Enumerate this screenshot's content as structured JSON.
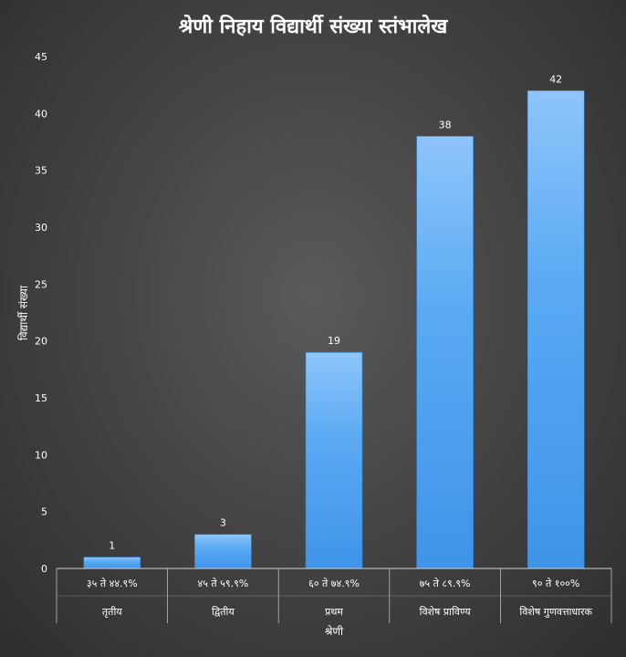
{
  "chart_data": {
    "type": "bar",
    "title": "श्रेणी निहाय विद्यार्थी संख्या स्तंभालेख",
    "xlabel": "श्रेणी",
    "ylabel": "विद्यार्थी संख्या",
    "ylim": [
      0,
      45
    ],
    "yticks": [
      "0",
      "5",
      "10",
      "15",
      "20",
      "25",
      "30",
      "35",
      "40",
      "45"
    ],
    "categories": [
      {
        "range": "३५ ते ४४.९%",
        "grade": "तृतीय"
      },
      {
        "range": "४५ ते ५९.९%",
        "grade": "द्वितीय"
      },
      {
        "range": "६० ते ७४.९%",
        "grade": "प्रथम"
      },
      {
        "range": "७५ ते ८९.९%",
        "grade": "विशेष प्राविण्य"
      },
      {
        "range": "९० ते १००%",
        "grade": "विशेष गुणवत्ताधारक"
      }
    ],
    "values": [
      1,
      3,
      19,
      38,
      42
    ],
    "data_labels": [
      "1",
      "3",
      "19",
      "38",
      "42"
    ],
    "grid": false,
    "legend": "none",
    "bar_color": "#4a9ff0"
  }
}
